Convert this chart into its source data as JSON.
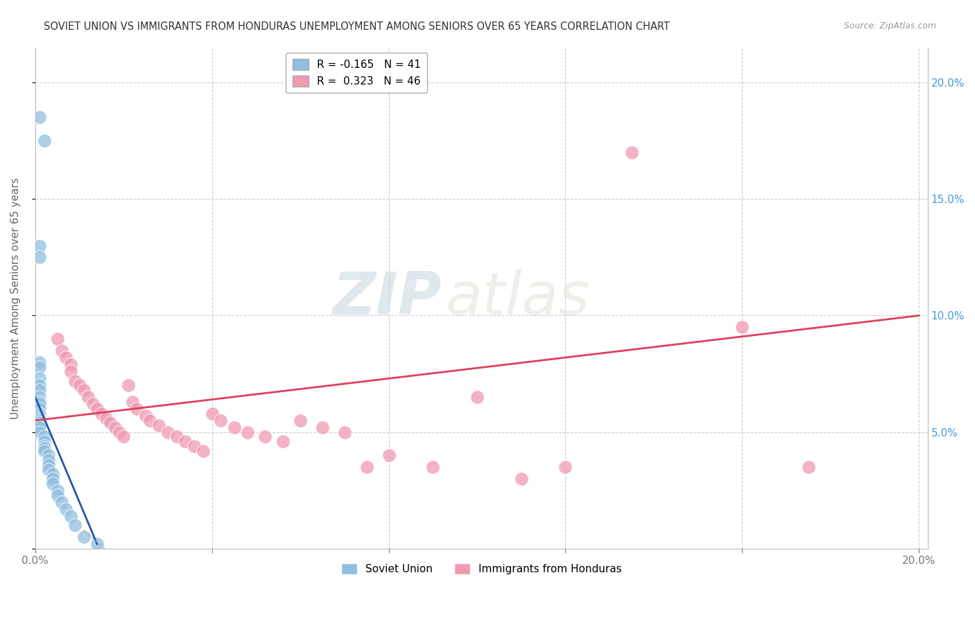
{
  "title": "SOVIET UNION VS IMMIGRANTS FROM HONDURAS UNEMPLOYMENT AMONG SENIORS OVER 65 YEARS CORRELATION CHART",
  "source": "Source: ZipAtlas.com",
  "ylabel": "Unemployment Among Seniors over 65 years",
  "xlim": [
    0.0,
    0.202
  ],
  "ylim": [
    0.0,
    0.215
  ],
  "yticks": [
    0.0,
    0.05,
    0.1,
    0.15,
    0.2
  ],
  "xticks": [
    0.0,
    0.04,
    0.08,
    0.12,
    0.16,
    0.2
  ],
  "soviet_union_color": "#91bfe0",
  "honduras_color": "#f09ab0",
  "soviet_union_line_color": "#2255aa",
  "honduras_line_color": "#e0405a",
  "watermark_zip": "ZIP",
  "watermark_atlas": "atlas",
  "soviet_union_R": -0.165,
  "soviet_union_N": 41,
  "honduras_R": 0.323,
  "honduras_N": 46,
  "soviet_x": [
    0.001,
    0.002,
    0.001,
    0.001,
    0.001,
    0.001,
    0.001,
    0.001,
    0.001,
    0.001,
    0.001,
    0.001,
    0.001,
    0.001,
    0.001,
    0.001,
    0.001,
    0.001,
    0.001,
    0.001,
    0.001,
    0.002,
    0.002,
    0.002,
    0.002,
    0.002,
    0.003,
    0.003,
    0.003,
    0.003,
    0.004,
    0.004,
    0.004,
    0.005,
    0.005,
    0.006,
    0.007,
    0.008,
    0.009,
    0.011,
    0.014
  ],
  "soviet_y": [
    0.185,
    0.175,
    0.13,
    0.125,
    0.08,
    0.078,
    0.073,
    0.07,
    0.068,
    0.065,
    0.063,
    0.062,
    0.06,
    0.058,
    0.057,
    0.056,
    0.055,
    0.054,
    0.053,
    0.052,
    0.05,
    0.048,
    0.046,
    0.044,
    0.043,
    0.042,
    0.04,
    0.038,
    0.036,
    0.034,
    0.032,
    0.03,
    0.028,
    0.025,
    0.023,
    0.02,
    0.017,
    0.014,
    0.01,
    0.005,
    0.002
  ],
  "honduras_x": [
    0.005,
    0.006,
    0.007,
    0.008,
    0.008,
    0.009,
    0.01,
    0.011,
    0.012,
    0.013,
    0.014,
    0.015,
    0.016,
    0.017,
    0.018,
    0.019,
    0.02,
    0.021,
    0.022,
    0.023,
    0.025,
    0.026,
    0.028,
    0.03,
    0.032,
    0.034,
    0.036,
    0.038,
    0.04,
    0.042,
    0.045,
    0.048,
    0.052,
    0.056,
    0.06,
    0.065,
    0.07,
    0.075,
    0.08,
    0.09,
    0.1,
    0.11,
    0.12,
    0.135,
    0.16,
    0.175
  ],
  "honduras_y": [
    0.09,
    0.085,
    0.082,
    0.079,
    0.076,
    0.072,
    0.07,
    0.068,
    0.065,
    0.062,
    0.06,
    0.058,
    0.056,
    0.054,
    0.052,
    0.05,
    0.048,
    0.07,
    0.063,
    0.06,
    0.057,
    0.055,
    0.053,
    0.05,
    0.048,
    0.046,
    0.044,
    0.042,
    0.058,
    0.055,
    0.052,
    0.05,
    0.048,
    0.046,
    0.055,
    0.052,
    0.05,
    0.035,
    0.04,
    0.035,
    0.065,
    0.03,
    0.035,
    0.17,
    0.095,
    0.035
  ],
  "honduras_line_x": [
    0.0,
    0.2
  ],
  "honduras_line_y": [
    0.055,
    0.1
  ],
  "soviet_line_x": [
    0.0,
    0.014
  ],
  "soviet_line_y": [
    0.065,
    0.002
  ]
}
